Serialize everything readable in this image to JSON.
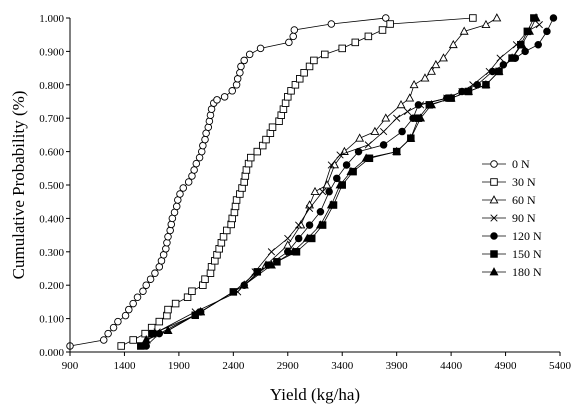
{
  "chart_data": {
    "type": "line",
    "title": "",
    "xlabel": "Yield (kg/ha)",
    "ylabel": "Cumulative Probability (%)",
    "xlim": [
      900,
      5400
    ],
    "ylim": [
      0,
      1
    ],
    "xticks": [
      900,
      1400,
      1900,
      2400,
      2900,
      3400,
      3900,
      4400,
      4900,
      5400
    ],
    "xtick_labels": [
      "900",
      "1400",
      "1900",
      "2400",
      "2900",
      "3400",
      "3900",
      "4400",
      "4900",
      "5400"
    ],
    "yticks": [
      0,
      0.1,
      0.2,
      0.3,
      0.4,
      0.5,
      0.6,
      0.7,
      0.8,
      0.9,
      1.0
    ],
    "ytick_labels": [
      "0.000",
      "0.100",
      "0.200",
      "0.300",
      "0.400",
      "0.500",
      "0.600",
      "0.700",
      "0.800",
      "0.900",
      "1.000"
    ],
    "grid": false,
    "legend_position": "right",
    "series": [
      {
        "name": "0 N",
        "marker": "circle-open",
        "points": [
          [
            900,
            0.018
          ],
          [
            1210,
            0.036
          ],
          [
            1250,
            0.055
          ],
          [
            1300,
            0.073
          ],
          [
            1340,
            0.091
          ],
          [
            1410,
            0.109
          ],
          [
            1440,
            0.127
          ],
          [
            1480,
            0.145
          ],
          [
            1520,
            0.164
          ],
          [
            1570,
            0.182
          ],
          [
            1600,
            0.2
          ],
          [
            1640,
            0.218
          ],
          [
            1680,
            0.236
          ],
          [
            1720,
            0.255
          ],
          [
            1740,
            0.273
          ],
          [
            1760,
            0.291
          ],
          [
            1780,
            0.309
          ],
          [
            1790,
            0.327
          ],
          [
            1800,
            0.345
          ],
          [
            1820,
            0.364
          ],
          [
            1830,
            0.382
          ],
          [
            1840,
            0.4
          ],
          [
            1860,
            0.418
          ],
          [
            1880,
            0.436
          ],
          [
            1890,
            0.455
          ],
          [
            1910,
            0.473
          ],
          [
            1940,
            0.491
          ],
          [
            1990,
            0.509
          ],
          [
            2020,
            0.527
          ],
          [
            2040,
            0.545
          ],
          [
            2060,
            0.564
          ],
          [
            2090,
            0.582
          ],
          [
            2110,
            0.6
          ],
          [
            2120,
            0.618
          ],
          [
            2140,
            0.636
          ],
          [
            2150,
            0.655
          ],
          [
            2170,
            0.673
          ],
          [
            2180,
            0.691
          ],
          [
            2190,
            0.709
          ],
          [
            2200,
            0.727
          ],
          [
            2220,
            0.745
          ],
          [
            2250,
            0.755
          ],
          [
            2320,
            0.764
          ],
          [
            2390,
            0.782
          ],
          [
            2430,
            0.8
          ],
          [
            2440,
            0.818
          ],
          [
            2460,
            0.836
          ],
          [
            2470,
            0.855
          ],
          [
            2500,
            0.873
          ],
          [
            2550,
            0.891
          ],
          [
            2650,
            0.909
          ],
          [
            2910,
            0.927
          ],
          [
            2950,
            0.945
          ],
          [
            2960,
            0.964
          ],
          [
            3300,
            0.982
          ],
          [
            3800,
            1.0
          ]
        ]
      },
      {
        "name": "30 N",
        "marker": "square-open",
        "points": [
          [
            1370,
            0.018
          ],
          [
            1480,
            0.036
          ],
          [
            1590,
            0.055
          ],
          [
            1650,
            0.073
          ],
          [
            1720,
            0.091
          ],
          [
            1790,
            0.109
          ],
          [
            1800,
            0.127
          ],
          [
            1870,
            0.145
          ],
          [
            1980,
            0.164
          ],
          [
            2020,
            0.182
          ],
          [
            2120,
            0.2
          ],
          [
            2140,
            0.218
          ],
          [
            2190,
            0.236
          ],
          [
            2200,
            0.255
          ],
          [
            2230,
            0.273
          ],
          [
            2250,
            0.291
          ],
          [
            2270,
            0.309
          ],
          [
            2290,
            0.327
          ],
          [
            2310,
            0.345
          ],
          [
            2340,
            0.364
          ],
          [
            2380,
            0.382
          ],
          [
            2390,
            0.4
          ],
          [
            2410,
            0.418
          ],
          [
            2420,
            0.436
          ],
          [
            2430,
            0.455
          ],
          [
            2460,
            0.473
          ],
          [
            2480,
            0.491
          ],
          [
            2500,
            0.509
          ],
          [
            2510,
            0.527
          ],
          [
            2520,
            0.545
          ],
          [
            2540,
            0.564
          ],
          [
            2560,
            0.582
          ],
          [
            2620,
            0.6
          ],
          [
            2670,
            0.618
          ],
          [
            2700,
            0.636
          ],
          [
            2740,
            0.655
          ],
          [
            2760,
            0.673
          ],
          [
            2820,
            0.691
          ],
          [
            2840,
            0.709
          ],
          [
            2860,
            0.727
          ],
          [
            2880,
            0.745
          ],
          [
            2900,
            0.764
          ],
          [
            2930,
            0.782
          ],
          [
            2970,
            0.8
          ],
          [
            3010,
            0.818
          ],
          [
            3050,
            0.836
          ],
          [
            3100,
            0.855
          ],
          [
            3140,
            0.873
          ],
          [
            3240,
            0.891
          ],
          [
            3400,
            0.909
          ],
          [
            3520,
            0.927
          ],
          [
            3640,
            0.945
          ],
          [
            3770,
            0.964
          ],
          [
            3840,
            0.982
          ],
          [
            4600,
            1.0
          ]
        ]
      },
      {
        "name": "60 N",
        "marker": "triangle-open",
        "points": [
          [
            1600,
            0.036
          ],
          [
            1800,
            0.064
          ],
          [
            2100,
            0.12
          ],
          [
            2500,
            0.2
          ],
          [
            2700,
            0.26
          ],
          [
            2900,
            0.32
          ],
          [
            3020,
            0.38
          ],
          [
            3100,
            0.44
          ],
          [
            3150,
            0.48
          ],
          [
            3260,
            0.5
          ],
          [
            3330,
            0.56
          ],
          [
            3420,
            0.6
          ],
          [
            3560,
            0.64
          ],
          [
            3700,
            0.66
          ],
          [
            3800,
            0.7
          ],
          [
            3940,
            0.74
          ],
          [
            4020,
            0.76
          ],
          [
            4060,
            0.8
          ],
          [
            4160,
            0.82
          ],
          [
            4220,
            0.84
          ],
          [
            4260,
            0.86
          ],
          [
            4330,
            0.88
          ],
          [
            4420,
            0.92
          ],
          [
            4520,
            0.96
          ],
          [
            4720,
            0.98
          ],
          [
            4820,
            1.0
          ]
        ]
      },
      {
        "name": "90 N",
        "marker": "cross",
        "points": [
          [
            1560,
            0.018
          ],
          [
            1700,
            0.06
          ],
          [
            2050,
            0.12
          ],
          [
            2440,
            0.18
          ],
          [
            2600,
            0.24
          ],
          [
            2750,
            0.3
          ],
          [
            2900,
            0.34
          ],
          [
            3000,
            0.38
          ],
          [
            3100,
            0.43
          ],
          [
            3220,
            0.48
          ],
          [
            3300,
            0.56
          ],
          [
            3380,
            0.59
          ],
          [
            3640,
            0.62
          ],
          [
            3780,
            0.66
          ],
          [
            3900,
            0.7
          ],
          [
            4000,
            0.72
          ],
          [
            4120,
            0.74
          ],
          [
            4360,
            0.76
          ],
          [
            4500,
            0.78
          ],
          [
            4600,
            0.8
          ],
          [
            4750,
            0.84
          ],
          [
            4850,
            0.88
          ],
          [
            5000,
            0.92
          ],
          [
            5100,
            0.96
          ],
          [
            5210,
            0.98
          ]
        ]
      },
      {
        "name": "120 N",
        "marker": "circle-filled",
        "points": [
          [
            1600,
            0.018
          ],
          [
            1720,
            0.055
          ],
          [
            2100,
            0.12
          ],
          [
            2500,
            0.2
          ],
          [
            2720,
            0.26
          ],
          [
            2900,
            0.3
          ],
          [
            3000,
            0.34
          ],
          [
            3100,
            0.38
          ],
          [
            3200,
            0.42
          ],
          [
            3280,
            0.48
          ],
          [
            3350,
            0.52
          ],
          [
            3440,
            0.56
          ],
          [
            3550,
            0.6
          ],
          [
            3780,
            0.62
          ],
          [
            3950,
            0.66
          ],
          [
            4050,
            0.7
          ],
          [
            4100,
            0.74
          ],
          [
            4360,
            0.76
          ],
          [
            4500,
            0.78
          ],
          [
            4640,
            0.8
          ],
          [
            4780,
            0.84
          ],
          [
            4880,
            0.86
          ],
          [
            4990,
            0.88
          ],
          [
            5080,
            0.9
          ],
          [
            5200,
            0.92
          ],
          [
            5280,
            0.96
          ],
          [
            5340,
            1.0
          ]
        ]
      },
      {
        "name": "150 N",
        "marker": "square-filled",
        "points": [
          [
            1550,
            0.018
          ],
          [
            1660,
            0.055
          ],
          [
            2050,
            0.11
          ],
          [
            2400,
            0.18
          ],
          [
            2620,
            0.24
          ],
          [
            2800,
            0.27
          ],
          [
            2980,
            0.3
          ],
          [
            3120,
            0.34
          ],
          [
            3220,
            0.38
          ],
          [
            3320,
            0.44
          ],
          [
            3400,
            0.5
          ],
          [
            3500,
            0.54
          ],
          [
            3650,
            0.58
          ],
          [
            3900,
            0.6
          ],
          [
            4030,
            0.64
          ],
          [
            4100,
            0.7
          ],
          [
            4200,
            0.74
          ],
          [
            4400,
            0.76
          ],
          [
            4560,
            0.78
          ],
          [
            4720,
            0.8
          ],
          [
            4840,
            0.84
          ],
          [
            4960,
            0.88
          ],
          [
            5040,
            0.92
          ],
          [
            5100,
            0.96
          ],
          [
            5160,
            1.0
          ]
        ]
      },
      {
        "name": "180 N",
        "marker": "triangle-filled",
        "points": [
          [
            1600,
            0.036
          ],
          [
            1800,
            0.064
          ],
          [
            2100,
            0.12
          ],
          [
            2500,
            0.2
          ],
          [
            2750,
            0.26
          ],
          [
            2950,
            0.3
          ],
          [
            3080,
            0.34
          ],
          [
            3200,
            0.38
          ],
          [
            3300,
            0.44
          ],
          [
            3380,
            0.5
          ],
          [
            3480,
            0.54
          ],
          [
            3620,
            0.58
          ],
          [
            3900,
            0.6
          ],
          [
            4030,
            0.64
          ],
          [
            4120,
            0.7
          ],
          [
            4220,
            0.74
          ],
          [
            4400,
            0.76
          ],
          [
            4560,
            0.78
          ],
          [
            4720,
            0.8
          ],
          [
            4840,
            0.84
          ],
          [
            4960,
            0.88
          ],
          [
            5050,
            0.92
          ],
          [
            5120,
            0.96
          ],
          [
            5180,
            1.0
          ]
        ]
      }
    ]
  }
}
